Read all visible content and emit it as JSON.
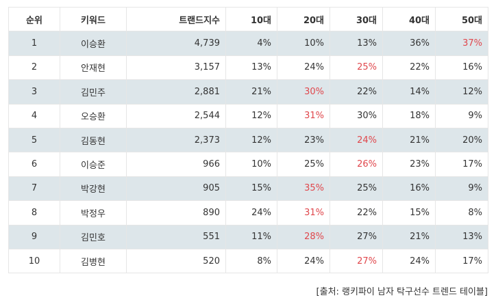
{
  "table": {
    "headers": {
      "rank": "순위",
      "keyword": "키워드",
      "trend": "트랜드지수",
      "age10": "10대",
      "age20": "20대",
      "age30": "30대",
      "age40": "40대",
      "age50": "50대"
    },
    "highlight_color": "#e0474c",
    "shade_color": "#dde6ea",
    "rows": [
      {
        "rank": "1",
        "keyword": "이승환",
        "trend": "4,739",
        "age10": "4%",
        "age20": "10%",
        "age30": "13%",
        "age40": "36%",
        "age50": "37%",
        "highlight": "age50"
      },
      {
        "rank": "2",
        "keyword": "안재현",
        "trend": "3,157",
        "age10": "13%",
        "age20": "24%",
        "age30": "25%",
        "age40": "22%",
        "age50": "16%",
        "highlight": "age30"
      },
      {
        "rank": "3",
        "keyword": "김민주",
        "trend": "2,881",
        "age10": "21%",
        "age20": "30%",
        "age30": "22%",
        "age40": "14%",
        "age50": "12%",
        "highlight": "age20"
      },
      {
        "rank": "4",
        "keyword": "오승환",
        "trend": "2,544",
        "age10": "12%",
        "age20": "31%",
        "age30": "30%",
        "age40": "18%",
        "age50": "9%",
        "highlight": "age20"
      },
      {
        "rank": "5",
        "keyword": "김동현",
        "trend": "2,373",
        "age10": "12%",
        "age20": "23%",
        "age30": "24%",
        "age40": "21%",
        "age50": "20%",
        "highlight": "age30"
      },
      {
        "rank": "6",
        "keyword": "이승준",
        "trend": "966",
        "age10": "10%",
        "age20": "25%",
        "age30": "26%",
        "age40": "23%",
        "age50": "17%",
        "highlight": "age30"
      },
      {
        "rank": "7",
        "keyword": "박강현",
        "trend": "905",
        "age10": "15%",
        "age20": "35%",
        "age30": "25%",
        "age40": "16%",
        "age50": "9%",
        "highlight": "age20"
      },
      {
        "rank": "8",
        "keyword": "박정우",
        "trend": "890",
        "age10": "24%",
        "age20": "31%",
        "age30": "22%",
        "age40": "15%",
        "age50": "8%",
        "highlight": "age20"
      },
      {
        "rank": "9",
        "keyword": "김민호",
        "trend": "551",
        "age10": "11%",
        "age20": "28%",
        "age30": "27%",
        "age40": "21%",
        "age50": "13%",
        "highlight": "age20"
      },
      {
        "rank": "10",
        "keyword": "김병현",
        "trend": "520",
        "age10": "8%",
        "age20": "24%",
        "age30": "27%",
        "age40": "24%",
        "age50": "17%",
        "highlight": "age30"
      }
    ]
  },
  "source": "[출처: 랭키파이 남자 탁구선수 트렌드 테이블]"
}
